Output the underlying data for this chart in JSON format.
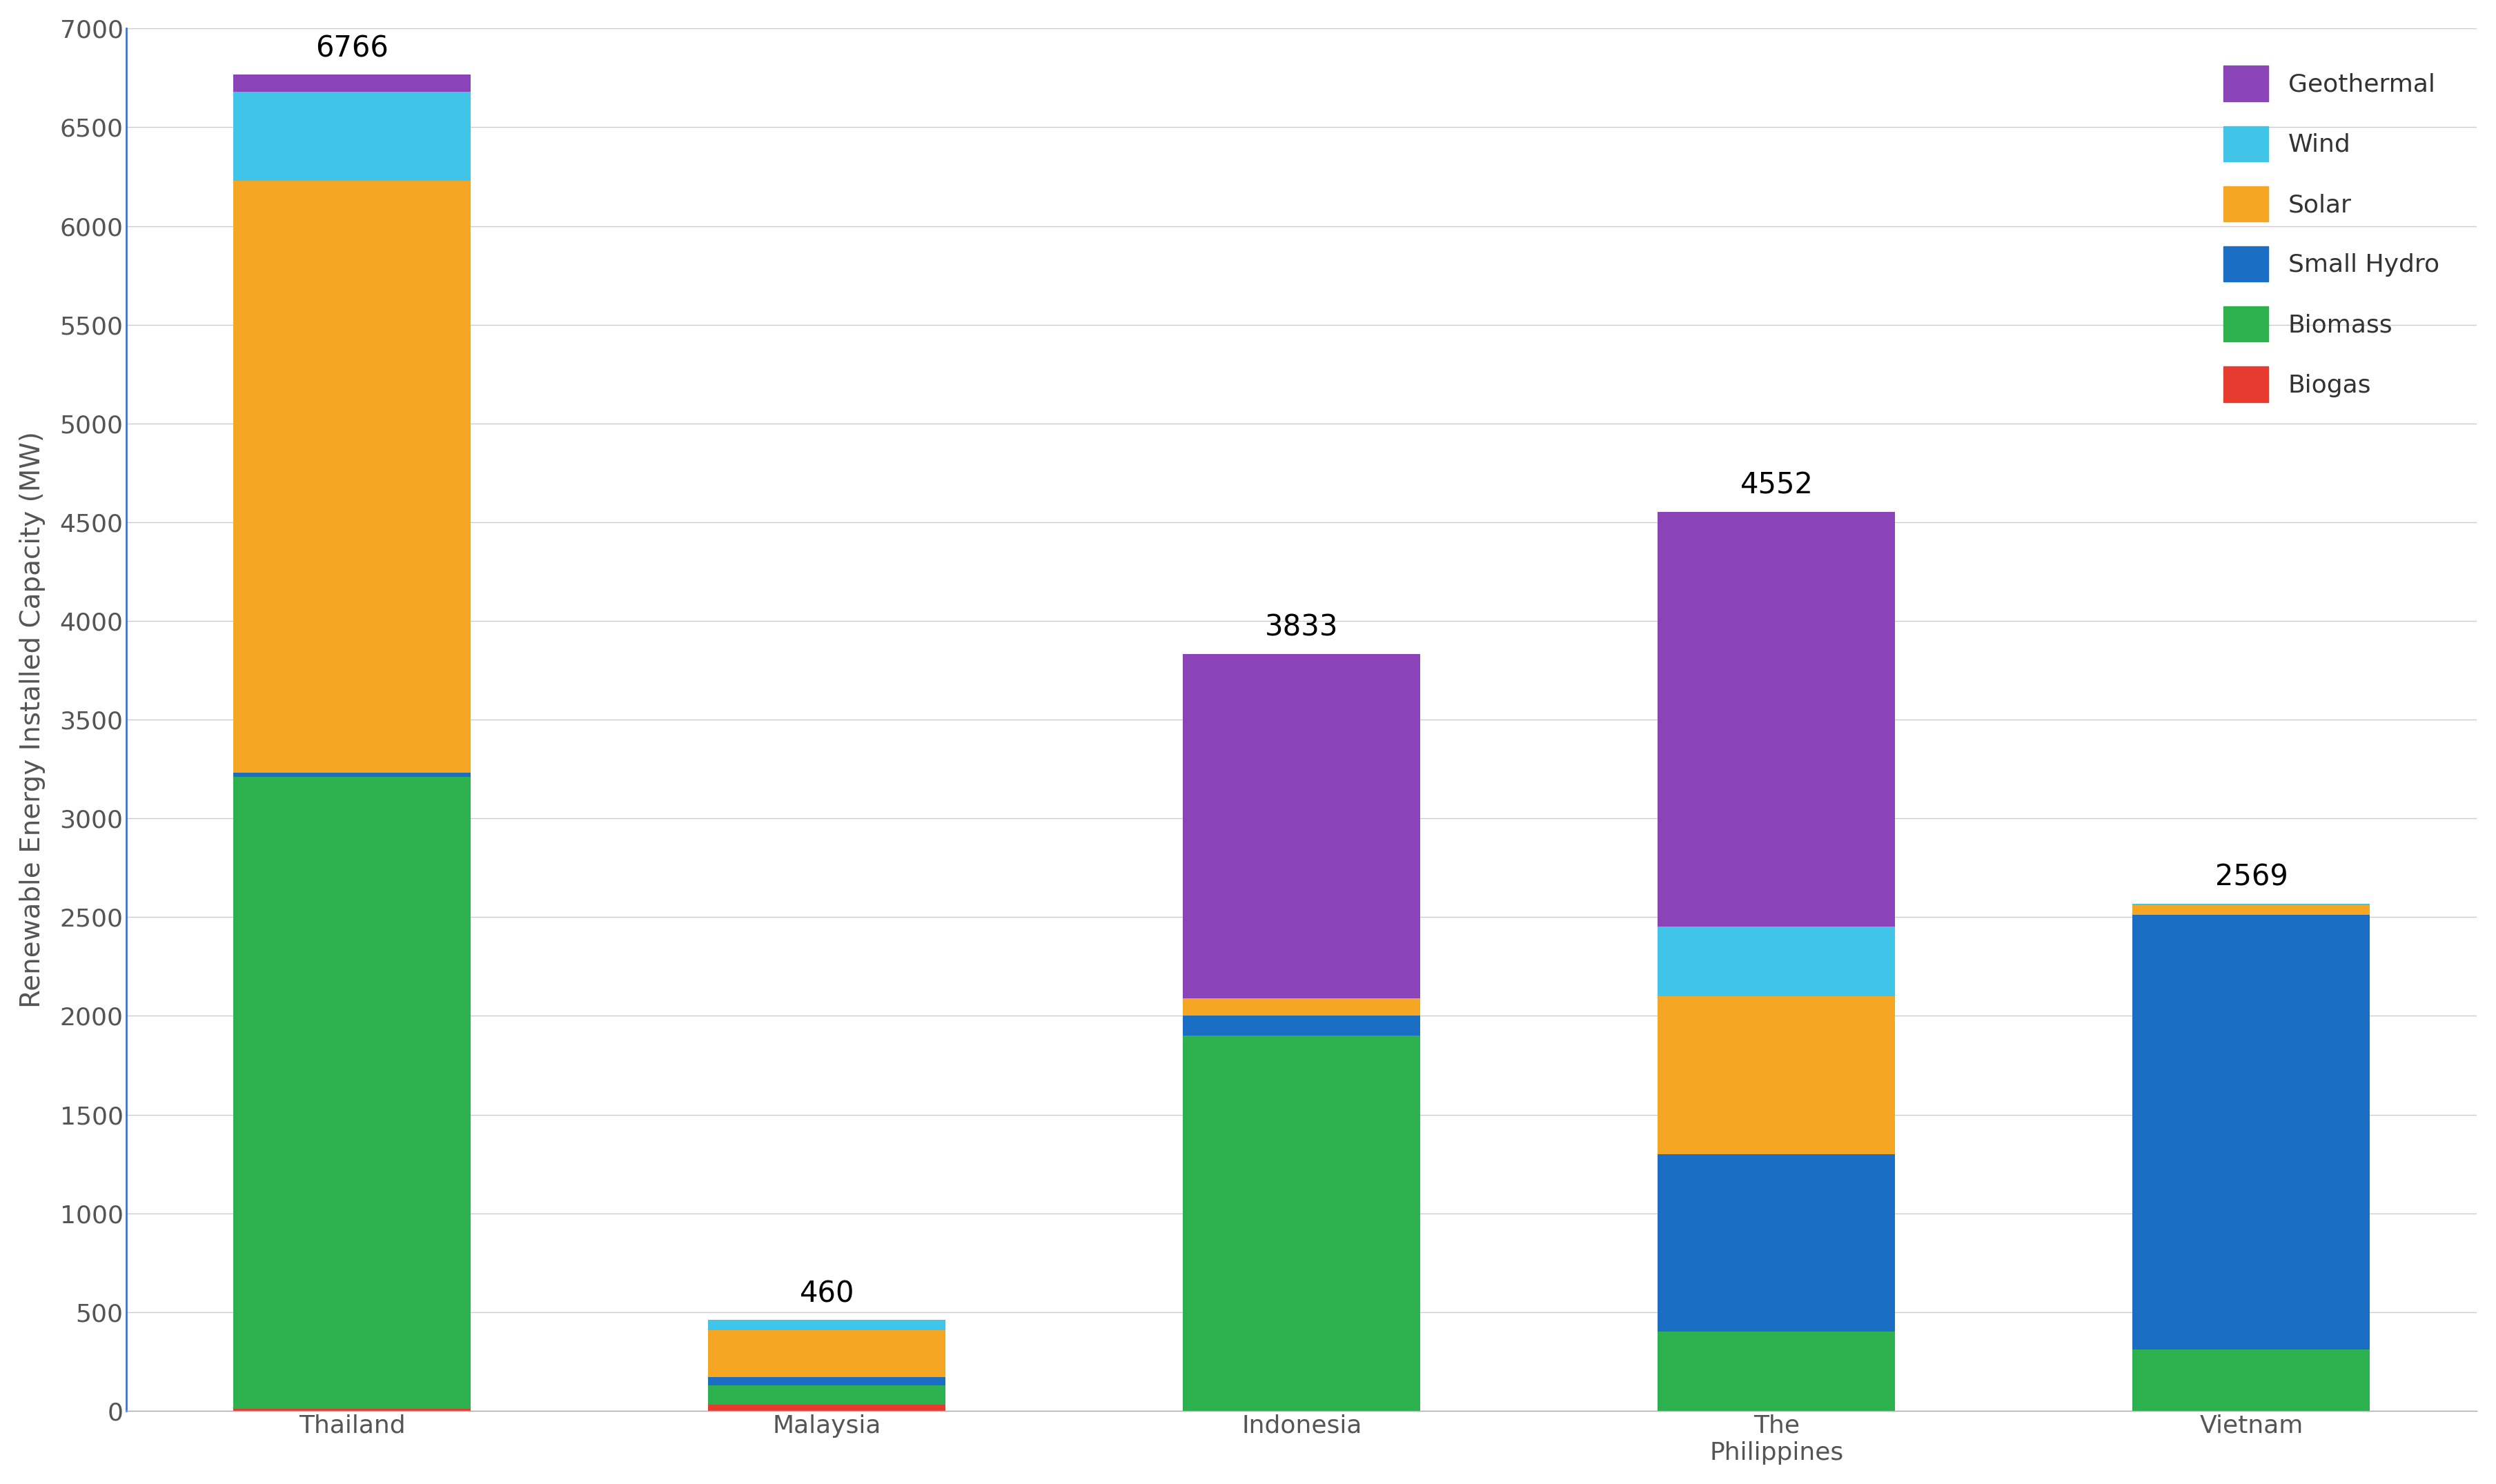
{
  "categories": [
    "Thailand",
    "Malaysia",
    "Indonesia",
    "The\nPhilippines",
    "Vietnam"
  ],
  "totals": [
    6766,
    460,
    3833,
    4552,
    2569
  ],
  "segments": {
    "Biogas": [
      10,
      30,
      0,
      0,
      0
    ],
    "Biomass": [
      3200,
      100,
      1900,
      400,
      310
    ],
    "Small Hydro": [
      20,
      40,
      100,
      900,
      2200
    ],
    "Solar": [
      3000,
      240,
      90,
      800,
      50
    ],
    "Wind": [
      450,
      50,
      0,
      352,
      9
    ],
    "Geothermal": [
      86,
      0,
      1743,
      2100,
      0
    ]
  },
  "colors": {
    "Biogas": "#e63b2e",
    "Biomass": "#2db14e",
    "Small Hydro": "#1a6fc4",
    "Solar": "#f5a623",
    "Wind": "#40c4e8",
    "Geothermal": "#8b44b8"
  },
  "ylabel": "Renewable Energy Installed Capacity (MW)",
  "ylim": [
    0,
    7000
  ],
  "yticks": [
    0,
    500,
    1000,
    1500,
    2000,
    2500,
    3000,
    3500,
    4000,
    4500,
    5000,
    5500,
    6000,
    6500,
    7000
  ],
  "background_color": "#ffffff",
  "bar_width": 0.5,
  "legend_order": [
    "Geothermal",
    "Wind",
    "Solar",
    "Small Hydro",
    "Biomass",
    "Biogas"
  ],
  "ylabel_fontsize": 28,
  "tick_fontsize": 26,
  "legend_fontsize": 26,
  "annotation_fontsize": 30
}
